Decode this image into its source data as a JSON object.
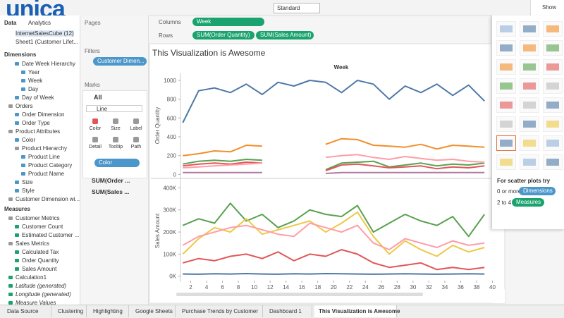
{
  "toolbar": {
    "logo": "unica",
    "view_size": "Standard",
    "show_me": "Show Me"
  },
  "data_pane": {
    "tabs": [
      "Data",
      "Analytics"
    ],
    "sources": [
      "InternetSalesCube (12)",
      "Sheet1 (Customer Lifet..."
    ],
    "dimensions_title": "Dimensions",
    "dimensions": [
      "Date Week Hierarchy",
      "Year",
      "Week",
      "Day",
      "Day of Week",
      "Orders",
      "Order Dimension",
      "Order Type",
      "Product Attributes",
      "Color",
      "Product Hierarchy",
      "Product Line",
      "Product Category",
      "Product Name",
      "Size",
      "Style",
      "Customer Dimension wi..."
    ],
    "measures_title": "Measures",
    "measures": [
      "Customer Metrics",
      "Customer Count",
      "Estimated Customer ...",
      "Sales Metrics",
      "Calculated Tax",
      "Order Quantity",
      "Sales Amount",
      "Calculation1",
      "Latitude (generated)",
      "Longitude (generated)",
      "Measure Values"
    ]
  },
  "shelves": {
    "pages": "Pages",
    "filters_title": "Filters",
    "filter": "Customer Dimen...",
    "marks_title": "Marks",
    "all": "All",
    "mark_type": "Line",
    "mark_buttons": [
      "Color",
      "Size",
      "Label",
      "Detail",
      "Tooltip",
      "Path"
    ],
    "color_pill": "Color",
    "mark_cards": [
      "SUM(Order ...",
      "SUM(Sales ..."
    ]
  },
  "columns": {
    "label": "Columns",
    "pill": "Week"
  },
  "rows": {
    "label": "Rows",
    "pills": [
      "SUM(Order Quantity)",
      "SUM(Sales Amount)"
    ]
  },
  "chart_data": {
    "type": "line",
    "title": "This Visualization is Awesome",
    "x_label": "Week",
    "x": [
      1,
      3,
      5,
      7,
      9,
      11,
      13,
      15,
      17,
      19,
      21,
      23,
      25,
      27,
      29,
      31,
      33,
      35,
      37,
      39
    ],
    "xlim": [
      0,
      40.4
    ],
    "xticks": [
      2,
      4,
      6,
      8,
      10,
      12,
      14,
      16,
      18,
      20,
      22,
      24,
      26,
      28,
      30,
      32,
      34,
      36,
      38,
      40
    ],
    "panes": [
      {
        "y_label": "Order Quantity",
        "ylim": [
          -20,
          1060
        ],
        "yticks": [
          0,
          200,
          400,
          600,
          800,
          1000
        ],
        "series": [
          {
            "color": "#4e79a7",
            "values": [
              550,
              890,
              920,
              870,
              960,
              850,
              980,
              940,
              1000,
              980,
              870,
              1000,
              960,
              800,
              940,
              870,
              960,
              840,
              950,
              780
            ]
          },
          {
            "color": "#f28e2b",
            "values": [
              200,
              220,
              250,
              240,
              310,
              300,
              null,
              null,
              null,
              320,
              380,
              370,
              310,
              300,
              290,
              320,
              270,
              310,
              300,
              290
            ]
          },
          {
            "color": "#59a14f",
            "values": [
              110,
              140,
              150,
              140,
              160,
              150,
              null,
              null,
              null,
              50,
              120,
              130,
              140,
              80,
              100,
              120,
              90,
              110,
              100,
              120
            ]
          },
          {
            "color": "#e15759",
            "values": [
              90,
              110,
              120,
              110,
              130,
              120,
              null,
              null,
              null,
              40,
              100,
              110,
              90,
              70,
              80,
              90,
              60,
              80,
              70,
              90
            ]
          },
          {
            "color": "#ff9da7",
            "values": [
              70,
              80,
              90,
              100,
              110,
              120,
              null,
              null,
              null,
              180,
              200,
              210,
              180,
              160,
              190,
              170,
              150,
              160,
              140,
              130
            ]
          },
          {
            "color": "#b07aa1",
            "values": [
              20,
              20,
              20,
              20,
              20,
              20,
              null,
              null,
              null,
              10,
              20,
              20,
              20,
              20,
              20,
              20,
              20,
              20,
              20,
              20
            ]
          }
        ]
      },
      {
        "y_label": "Sales Amount",
        "ylim": [
          -20000,
          430000
        ],
        "yticks": [
          {
            "value": 0,
            "label": "0K"
          },
          {
            "value": 100000,
            "label": "100K"
          },
          {
            "value": 200000,
            "label": "200K"
          },
          {
            "value": 300000,
            "label": "300K"
          },
          {
            "value": 400000,
            "label": "400K"
          }
        ],
        "series": [
          {
            "color": "#59a14f",
            "values": [
              230000,
              260000,
              240000,
              330000,
              250000,
              280000,
              220000,
              250000,
              300000,
              280000,
              270000,
              320000,
              200000,
              240000,
              280000,
              250000,
              230000,
              270000,
              180000,
              280000
            ]
          },
          {
            "color": "#edc948",
            "values": [
              100000,
              170000,
              220000,
              200000,
              260000,
              190000,
              210000,
              230000,
              250000,
              200000,
              240000,
              290000,
              180000,
              100000,
              160000,
              120000,
              90000,
              140000,
              110000,
              130000
            ]
          },
          {
            "color": "#ff9da7",
            "values": [
              140000,
              180000,
              200000,
              220000,
              230000,
              210000,
              190000,
              180000,
              240000,
              220000,
              200000,
              230000,
              150000,
              120000,
              170000,
              150000,
              130000,
              160000,
              140000,
              150000
            ]
          },
          {
            "color": "#e15759",
            "values": [
              60000,
              80000,
              70000,
              90000,
              100000,
              80000,
              110000,
              70000,
              100000,
              90000,
              120000,
              100000,
              60000,
              40000,
              50000,
              60000,
              30000,
              40000,
              30000,
              40000
            ]
          },
          {
            "color": "#4e79a7",
            "values": [
              10000,
              9000,
              11000,
              10000,
              12000,
              10000,
              9000,
              11000,
              10000,
              12000,
              11000,
              10000,
              9000,
              10000,
              11000,
              10000,
              9000,
              10000,
              11000,
              10000
            ]
          }
        ]
      }
    ]
  },
  "show_me": {
    "hint": "For scatter plots try",
    "dim_req": "0 or more",
    "dim_pill": "Dimensions",
    "meas_req": "2 to 4",
    "meas_pill": "Measures"
  },
  "tabs": [
    "Data Source",
    "Clustering",
    "Highlighting",
    "Google Sheets",
    "Purchase Trends by Customer",
    "Dashboard 1",
    "This Visualization is Awesome"
  ]
}
